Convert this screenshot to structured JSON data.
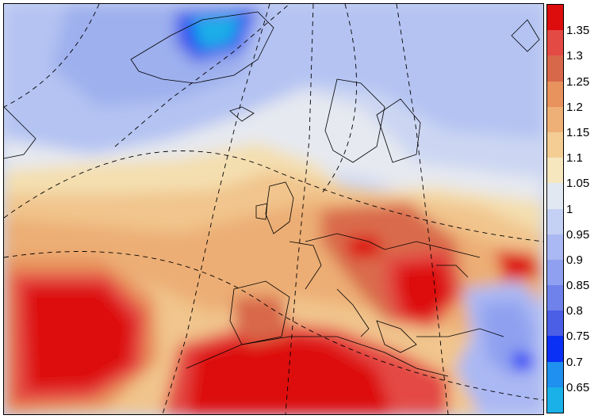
{
  "colorbar": {
    "colors_bottom_to_top": [
      "#1ab0e8",
      "#1f8ff0",
      "#0a2ff5",
      "#4a5ee6",
      "#6f82ec",
      "#8fa0f0",
      "#aab8f3",
      "#c5d0f5",
      "#e2e8f1",
      "#f6e7bf",
      "#f3cd93",
      "#eeb077",
      "#e8925d",
      "#d8684a",
      "#e44a44",
      "#dd0d0d"
    ],
    "tick_labels_bottom_to_top": [
      "0.65",
      "0.7",
      "0.75",
      "0.8",
      "0.85",
      "0.9",
      "0.95",
      "1",
      "1.05",
      "1.1",
      "1.15",
      "1.2",
      "1.25",
      "1.3",
      "1.35"
    ]
  }
}
